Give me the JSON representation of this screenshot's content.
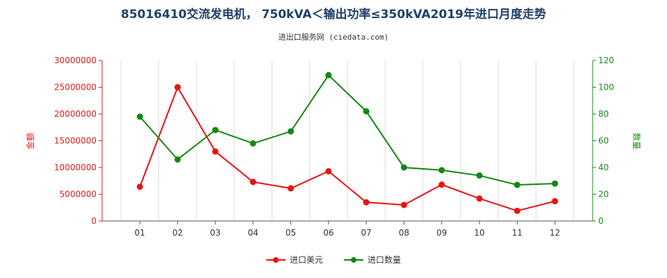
{
  "header": {
    "title": "85016410交流发电机， 750kVA＜输出功率≤350kVA2019年进口月度走势",
    "subtitle": "进出口服务网 (ciedata.com)"
  },
  "colors": {
    "left_axis": "#e31a1c",
    "right_axis": "#1a8a1a",
    "series_amount": "#ee1111",
    "series_quantity": "#118811"
  },
  "chart_data": {
    "type": "line",
    "categories": [
      "01",
      "02",
      "03",
      "04",
      "05",
      "06",
      "07",
      "08",
      "09",
      "10",
      "11",
      "12"
    ],
    "y_left": {
      "label": "金额",
      "range": [
        0,
        30000000
      ],
      "ticks": [
        "0",
        "5000000",
        "10000000",
        "15000000",
        "20000000",
        "25000000",
        "30000000"
      ]
    },
    "y_right": {
      "label": "数量",
      "range": [
        0,
        120
      ],
      "ticks": [
        "0",
        "20",
        "40",
        "60",
        "80",
        "100",
        "120"
      ]
    },
    "series": [
      {
        "name": "进口美元",
        "axis": "left",
        "values": [
          6400000,
          25000000,
          13000000,
          7300000,
          6100000,
          9300000,
          3500000,
          3000000,
          6800000,
          4200000,
          1900000,
          3700000
        ]
      },
      {
        "name": "进口数量",
        "axis": "right",
        "values": [
          78,
          46,
          68,
          58,
          67,
          109,
          82,
          40,
          38,
          34,
          27,
          28
        ]
      }
    ],
    "grid": "vertical"
  }
}
